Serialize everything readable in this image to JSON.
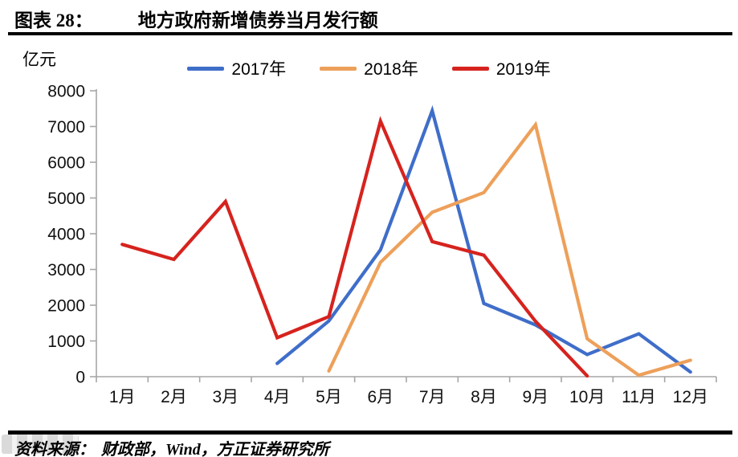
{
  "header": {
    "label": "图表 28：",
    "title": "地方政府新增债券当月发行额"
  },
  "footer": {
    "source_label": "资料来源：",
    "source_text": "财政部，Wind，方正证券研究所"
  },
  "chart_data": {
    "type": "line",
    "title": "地方政府新增债券当月发行额",
    "unit_label": "亿元",
    "xlabel": "",
    "ylabel": "亿元",
    "categories": [
      "1月",
      "2月",
      "3月",
      "4月",
      "5月",
      "6月",
      "7月",
      "8月",
      "9月",
      "10月",
      "11月",
      "12月"
    ],
    "series": [
      {
        "name": "2017年",
        "color": "#3f6ec9",
        "values": [
          null,
          null,
          null,
          370,
          1560,
          3550,
          7440,
          2050,
          1450,
          620,
          1200,
          130
        ]
      },
      {
        "name": "2018年",
        "color": "#eda05a",
        "values": [
          null,
          null,
          null,
          null,
          160,
          3200,
          4600,
          5150,
          7050,
          1060,
          40,
          460
        ]
      },
      {
        "name": "2019年",
        "color": "#d6231e",
        "values": [
          3700,
          3280,
          4900,
          1090,
          1680,
          7150,
          3780,
          3400,
          1550,
          20,
          null,
          null
        ]
      }
    ],
    "ylim": [
      0,
      8000
    ],
    "yticks": [
      0,
      1000,
      2000,
      3000,
      4000,
      5000,
      6000,
      7000,
      8000
    ],
    "legend_position": "top",
    "grid": false,
    "axis_color": "#a6a6a6"
  }
}
